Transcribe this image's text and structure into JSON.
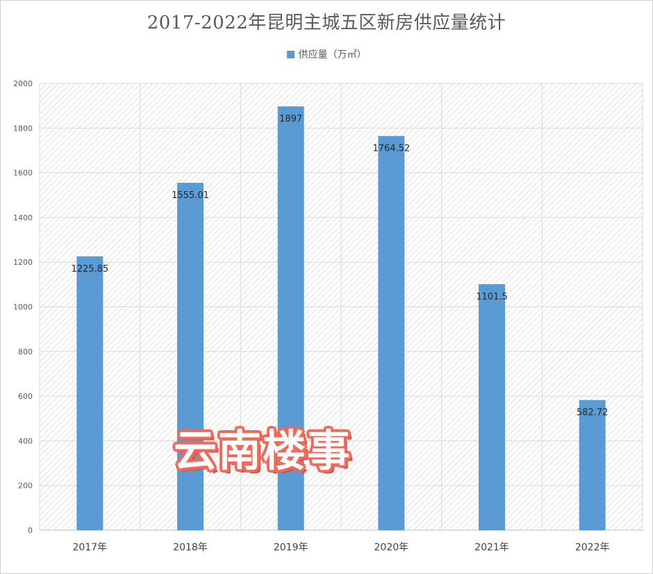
{
  "chart_data": {
    "type": "bar",
    "title": "2017-2022年昆明主城五区新房供应量统计",
    "categories": [
      "2017年",
      "2018年",
      "2019年",
      "2020年",
      "2021年",
      "2022年"
    ],
    "series": [
      {
        "name": "供应量（万㎡）",
        "values": [
          1225.85,
          1555.01,
          1897,
          1764.52,
          1101.5,
          582.72
        ],
        "data_labels": [
          "1225.85",
          "1555.01",
          "1897",
          "1764.52",
          "1101.5",
          "582.72"
        ],
        "color": "#5b9bd5"
      }
    ],
    "ylim": [
      0,
      2000
    ],
    "yticks": [
      0,
      200,
      400,
      600,
      800,
      1000,
      1200,
      1400,
      1600,
      1800,
      2000
    ],
    "grid": true,
    "legend_position": "top-center"
  },
  "watermark": "云南楼事"
}
